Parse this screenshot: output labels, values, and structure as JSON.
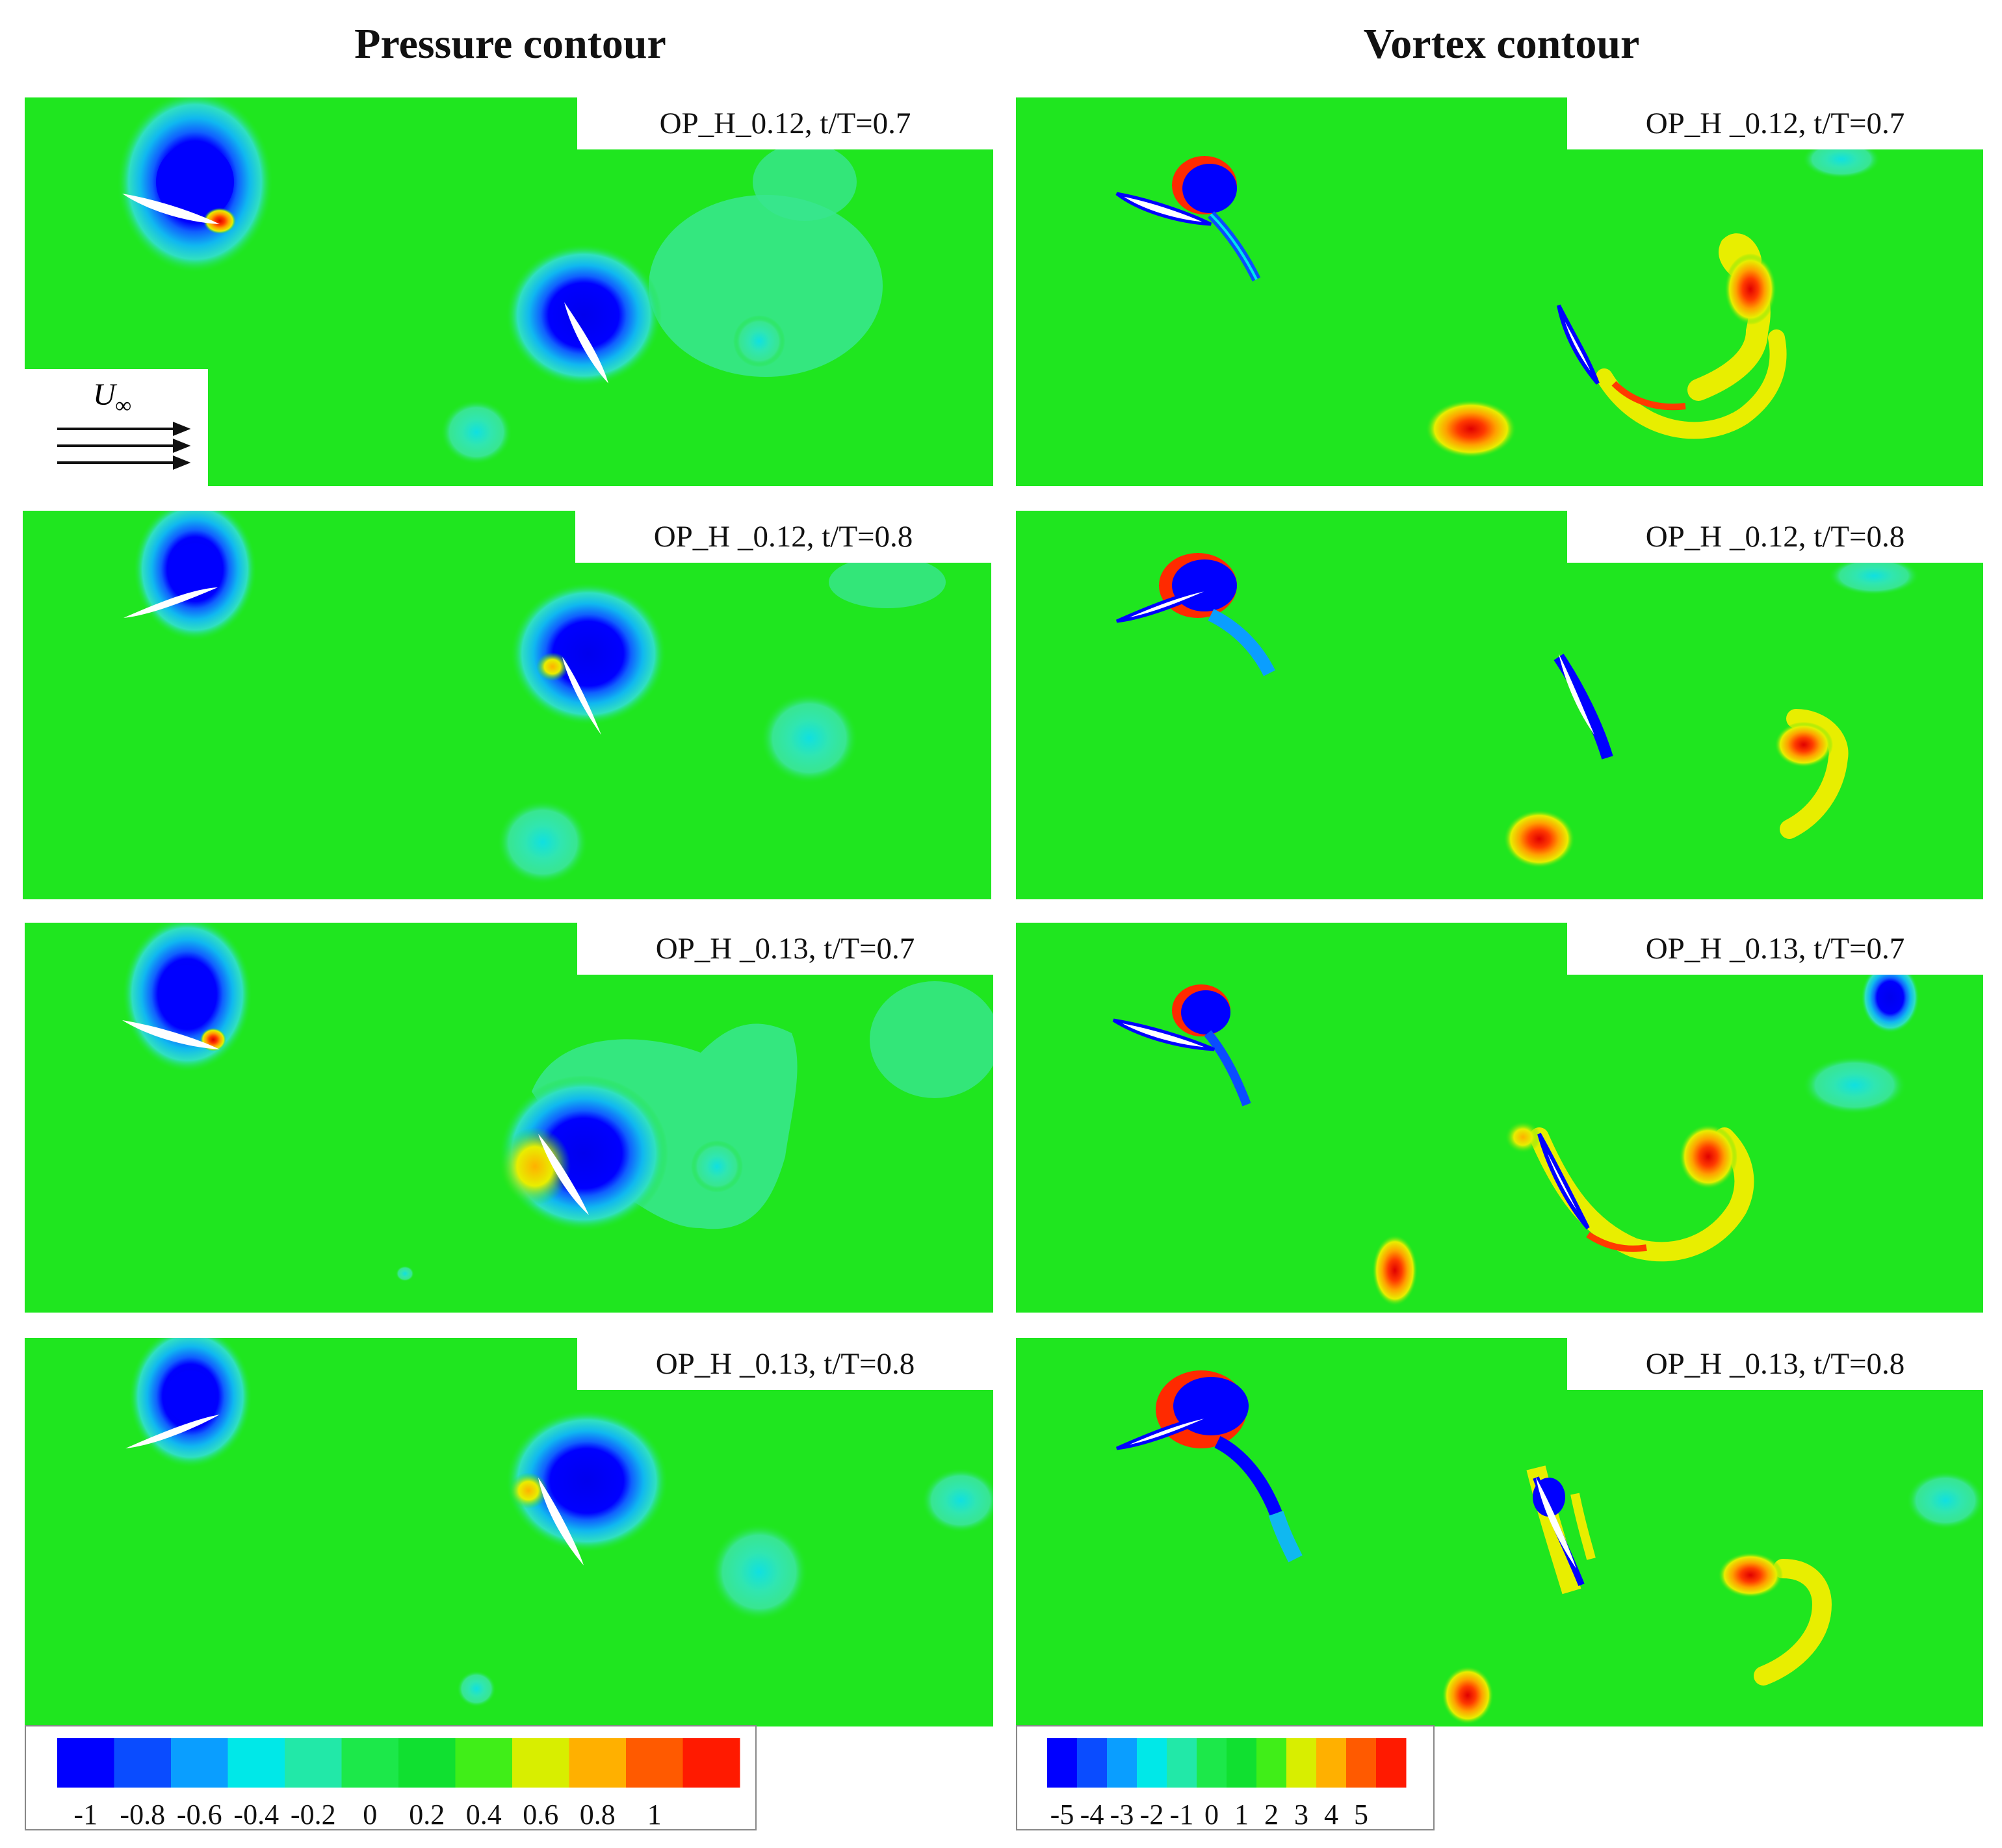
{
  "titles": {
    "pressure": "Pressure contour",
    "vortex": "Vortex contour"
  },
  "panels": {
    "p1": "OP_H_0.12, t/T=0.7",
    "p2": "OP_H _0.12, t/T=0.8",
    "p3": "OP_H _0.13, t/T=0.7",
    "p4": "OP_H _0.13, t/T=0.8",
    "v1": "OP_H _0.12, t/T=0.7",
    "v2": "OP_H _0.12, t/T=0.8",
    "v3": "OP_H _0.13, t/T=0.7",
    "v4": "OP_H _0.13, t/T=0.8"
  },
  "freestream": {
    "label_main": "U",
    "label_sub": "∞"
  },
  "pressure_colorbar": {
    "colors": [
      "#0000ff",
      "#0a4cff",
      "#0a9eff",
      "#00e8e8",
      "#22e8a8",
      "#1ce84a",
      "#10e030",
      "#40ee18",
      "#d8ee00",
      "#ffb000",
      "#ff5a00",
      "#ff1a00"
    ],
    "tick_labels": [
      "-1",
      "-0.8",
      "-0.6",
      "-0.4",
      "-0.2",
      "0",
      "0.2",
      "0.4",
      "0.6",
      "0.8",
      "1"
    ]
  },
  "vortex_colorbar": {
    "colors": [
      "#0000ff",
      "#0a4cff",
      "#0a9eff",
      "#00e8e8",
      "#22e8a8",
      "#1ce84a",
      "#10e030",
      "#40ee18",
      "#d8ee00",
      "#ffb000",
      "#ff5a00",
      "#ff1a00"
    ],
    "tick_labels": [
      "-5",
      "-4",
      "-3",
      "-2",
      "-1",
      "0",
      "1",
      "2",
      "3",
      "4",
      "5"
    ]
  },
  "colors": {
    "background_field": "#1fe61f",
    "high": "#ff1a00",
    "low": "#0000ff"
  }
}
